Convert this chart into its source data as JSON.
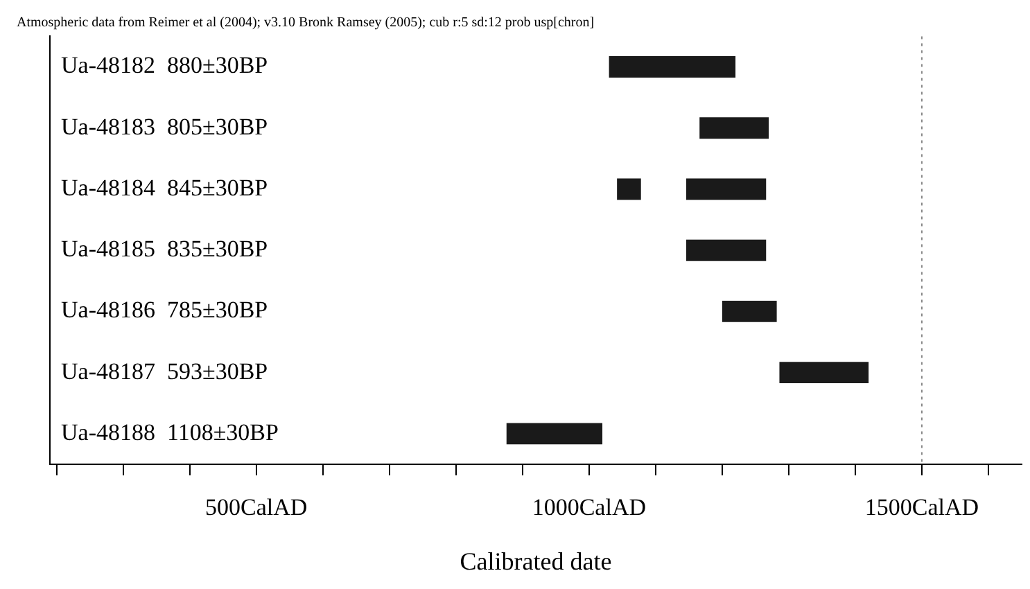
{
  "chart_data": {
    "type": "bar",
    "orientation": "horizontal",
    "title": "Atmospheric data from Reimer et al (2004); v3.10 Bronk Ramsey (2005); cub r:5 sd:12 prob usp[chron]",
    "xlabel": "Calibrated date",
    "categories": [
      "Ua-48182  880±30BP",
      "Ua-48183  805±30BP",
      "Ua-48184  845±30BP",
      "Ua-48185  835±30BP",
      "Ua-48186  785±30BP",
      "Ua-48187  593±30BP",
      "Ua-48188  1108±30BP"
    ],
    "series": [
      {
        "color": "#1a1a1a",
        "base": [
          1030,
          1166,
          1146,
          1146,
          1200,
          1286,
          876
        ],
        "values": [
          190,
          104,
          120,
          120,
          82,
          134,
          144
        ]
      },
      {
        "color": "#1a1a1a",
        "base": [
          null,
          null,
          1042,
          null,
          null,
          null,
          null
        ],
        "values": [
          null,
          null,
          36,
          null,
          null,
          null,
          null
        ]
      }
    ],
    "xlim": [
      190,
      1650
    ],
    "xticks": [
      {
        "value": 200,
        "label": null
      },
      {
        "value": 300,
        "label": null
      },
      {
        "value": 400,
        "label": null
      },
      {
        "value": 500,
        "label": "500CalAD"
      },
      {
        "value": 600,
        "label": null
      },
      {
        "value": 700,
        "label": null
      },
      {
        "value": 800,
        "label": null
      },
      {
        "value": 900,
        "label": null
      },
      {
        "value": 1000,
        "label": "1000CalAD"
      },
      {
        "value": 1100,
        "label": null
      },
      {
        "value": 1200,
        "label": null
      },
      {
        "value": 1300,
        "label": null
      },
      {
        "value": 1400,
        "label": null
      },
      {
        "value": 1500,
        "label": "1500CalAD"
      },
      {
        "value": 1600,
        "label": null
      }
    ],
    "ref_lines": [
      {
        "axis": "x",
        "value": 1500,
        "line_style": "dotted",
        "color": "#888888"
      }
    ],
    "grid": false,
    "legend": false
  }
}
